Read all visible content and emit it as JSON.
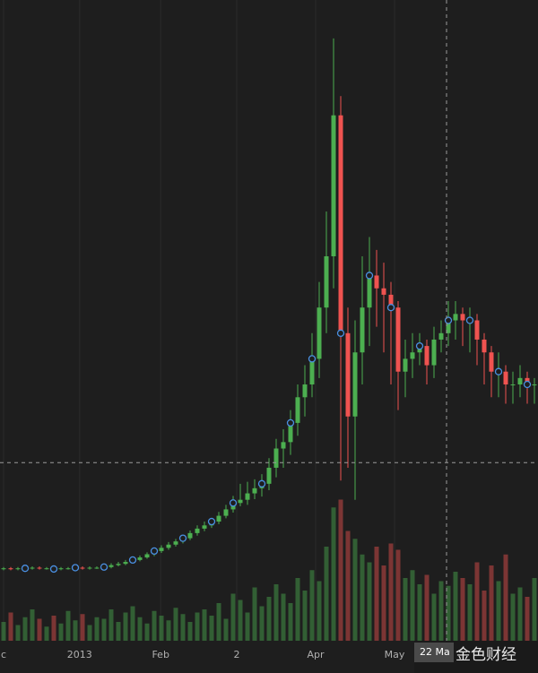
{
  "chart_data": {
    "type": "candlestick",
    "x": [
      0,
      1,
      2,
      3,
      4,
      5,
      6,
      7,
      8,
      9,
      10,
      11,
      12,
      13,
      14,
      15,
      16,
      17,
      18,
      19,
      20,
      21,
      22,
      23,
      24,
      25,
      26,
      27,
      28,
      29,
      30,
      31,
      32,
      33,
      34,
      35,
      36,
      37,
      38,
      39,
      40,
      41,
      42,
      43,
      44,
      45,
      46,
      47,
      48,
      49,
      50,
      51,
      52,
      53,
      54,
      55,
      56,
      57,
      58,
      59,
      60,
      61,
      62,
      63,
      64,
      65,
      66,
      67,
      68,
      69,
      70,
      71,
      72,
      73,
      74
    ],
    "open": [
      11.2,
      11.3,
      11.2,
      11.3,
      11.3,
      11.4,
      11.3,
      11.3,
      11.2,
      11.3,
      11.3,
      11.4,
      11.3,
      11.4,
      11.4,
      11.5,
      11.8,
      12,
      12.3,
      12.6,
      13,
      13.5,
      14,
      14.5,
      15,
      15.5,
      16,
      16.8,
      17.5,
      18,
      18.6,
      19.5,
      20.5,
      21.5,
      22,
      23,
      23.8,
      24.5,
      27,
      30,
      31,
      34,
      38,
      40,
      44,
      52,
      60,
      82,
      48,
      35,
      45,
      52,
      57,
      55,
      54,
      52,
      42,
      44,
      45,
      46,
      43,
      47,
      48,
      50,
      51,
      50,
      50,
      47,
      45,
      42,
      42,
      40,
      40,
      41,
      40
    ],
    "high": [
      11.5,
      11.5,
      11.5,
      11.5,
      11.6,
      11.6,
      11.5,
      11.5,
      11.5,
      11.5,
      11.6,
      11.6,
      11.6,
      11.6,
      11.8,
      12.1,
      12.3,
      12.6,
      12.9,
      13.3,
      13.8,
      14.4,
      14.9,
      15.4,
      15.9,
      16.5,
      17.2,
      18,
      18.6,
      19.2,
      20.1,
      21.2,
      22.6,
      24.5,
      24.8,
      25.2,
      26,
      28.5,
      31.5,
      33,
      36,
      40,
      43,
      48,
      56,
      67,
      94,
      85,
      52,
      50,
      60,
      63,
      61,
      59,
      56,
      53,
      47,
      48,
      48,
      47,
      49,
      50,
      53,
      53,
      52,
      52,
      51,
      48,
      46,
      45,
      43,
      42,
      43,
      42,
      41
    ],
    "low": [
      11.0,
      11.0,
      11.0,
      11.1,
      11.1,
      11.1,
      11.1,
      11.0,
      11.0,
      11.1,
      11.1,
      11.1,
      11.1,
      11.2,
      11.2,
      11.3,
      11.6,
      11.8,
      12.1,
      12.4,
      12.8,
      13.2,
      13.7,
      14.2,
      14.7,
      15.2,
      15.7,
      16.4,
      17.1,
      17.6,
      18.2,
      19.1,
      20,
      21,
      21.2,
      22.1,
      22.5,
      23.5,
      25.5,
      27,
      29,
      32,
      35,
      38,
      41,
      48,
      55,
      25,
      27,
      22,
      40,
      46,
      49,
      45,
      40,
      36,
      38,
      41,
      43,
      40,
      41,
      45,
      46,
      47,
      46,
      45,
      43,
      40,
      38,
      38,
      37,
      37,
      38,
      37,
      37
    ],
    "close": [
      11.3,
      11.2,
      11.3,
      11.3,
      11.4,
      11.3,
      11.3,
      11.2,
      11.3,
      11.3,
      11.4,
      11.3,
      11.4,
      11.4,
      11.5,
      11.8,
      12,
      12.3,
      12.6,
      13,
      13.5,
      14,
      14.5,
      15,
      15.5,
      16,
      16.8,
      17.5,
      18,
      18.6,
      19.5,
      20.5,
      21.5,
      22,
      23,
      23.8,
      24.5,
      27,
      30,
      31,
      34,
      38,
      40,
      44,
      52,
      60,
      82,
      48,
      35,
      45,
      52,
      57,
      55,
      54,
      52,
      42,
      44,
      45,
      46,
      43,
      47,
      48,
      50,
      51,
      50,
      50,
      47,
      45,
      42,
      42,
      40,
      40,
      41,
      40,
      40
    ],
    "volume": [
      12,
      18,
      10,
      15,
      20,
      14,
      9,
      16,
      11,
      19,
      13,
      17,
      10,
      15,
      14,
      20,
      12,
      18,
      22,
      15,
      11,
      19,
      16,
      13,
      21,
      17,
      12,
      18,
      20,
      16,
      24,
      14,
      30,
      26,
      18,
      34,
      22,
      28,
      36,
      30,
      24,
      40,
      32,
      45,
      38,
      60,
      85,
      90,
      70,
      65,
      55,
      50,
      60,
      48,
      62,
      58,
      40,
      45,
      36,
      42,
      30,
      38,
      35,
      44,
      40,
      36,
      50,
      32,
      48,
      38,
      55,
      30,
      34,
      28,
      40
    ],
    "markers": [
      3,
      7,
      10,
      14,
      18,
      21,
      25,
      29,
      32,
      36,
      40,
      43,
      47,
      51,
      54,
      58,
      62,
      65,
      69,
      73
    ],
    "up_color": "#4caf50",
    "down_color": "#ef5350",
    "marker_color": "#4a90e2",
    "xlim": [
      0,
      75
    ],
    "ylim": [
      0,
      100
    ],
    "y2lim": [
      0,
      100
    ],
    "xticks": [
      {
        "value": 0,
        "label": "c"
      },
      {
        "value": 10.6,
        "label": "2013"
      },
      {
        "value": 21.9,
        "label": "Feb"
      },
      {
        "value": 32.5,
        "label": "2"
      },
      {
        "value": 43.5,
        "label": "Apr"
      },
      {
        "value": 54.5,
        "label": "May"
      }
    ],
    "grid": true,
    "crosshair": {
      "x": 62.25,
      "y": 27.8,
      "label": "22 Ma"
    },
    "watermark": "金色财经"
  }
}
